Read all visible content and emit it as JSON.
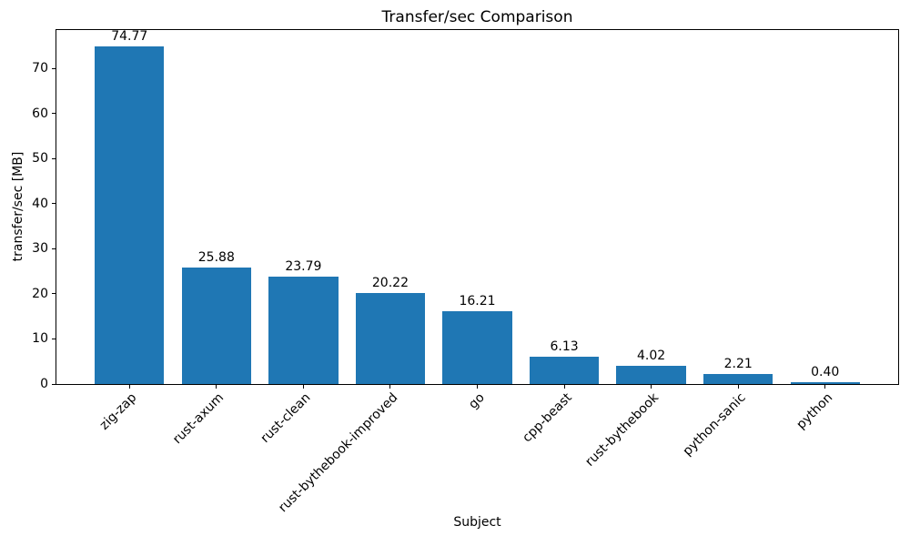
{
  "chart_data": {
    "type": "bar",
    "title": "Transfer/sec Comparison",
    "xlabel": "Subject",
    "ylabel": "transfer/sec [MB]",
    "categories": [
      "zig-zap",
      "rust-axum",
      "rust-clean",
      "rust-bythebook-improved",
      "go",
      "cpp-beast",
      "rust-bythebook",
      "python-sanic",
      "python"
    ],
    "values": [
      74.77,
      25.88,
      23.79,
      20.22,
      16.21,
      6.13,
      4.02,
      2.21,
      0.4
    ],
    "bar_labels": [
      "74.77",
      "25.88",
      "23.79",
      "20.22",
      "16.21",
      "6.13",
      "4.02",
      "2.21",
      "0.40"
    ],
    "yticks": [
      "0",
      "10",
      "20",
      "30",
      "40",
      "50",
      "60",
      "70"
    ],
    "ytick_values": [
      0,
      10,
      20,
      30,
      40,
      50,
      60,
      70
    ],
    "ylim": [
      0,
      78.5
    ],
    "bar_color": "#1f77b4",
    "axis_color": "#000000",
    "text_color": "#000000",
    "grid": false,
    "legend_position": "none",
    "x_tick_rotation_deg": 45,
    "bar_rel_width": 0.8
  }
}
